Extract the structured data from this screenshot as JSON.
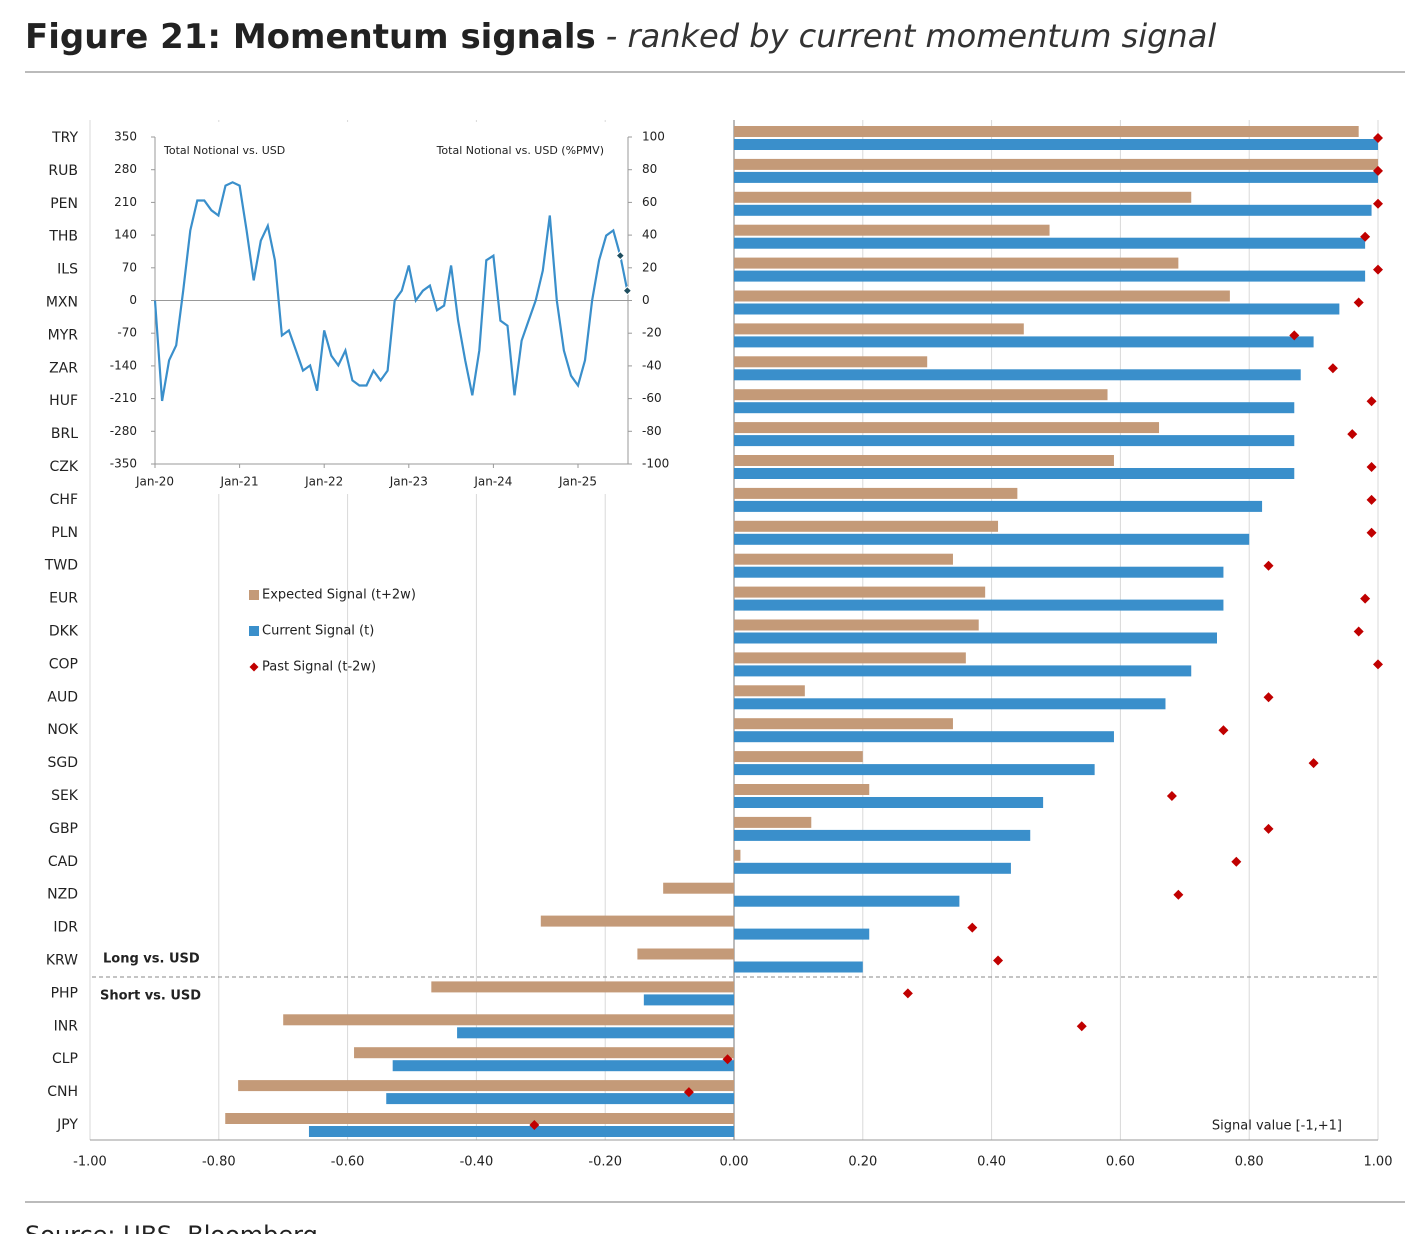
{
  "title": "Figure 21: Momentum signals",
  "subtitle": "- ranked by current momentum signal",
  "source": "Source: UBS, Bloomberg",
  "chart_data": [
    {
      "type": "bar",
      "orientation": "horizontal",
      "categories": [
        "TRY",
        "RUB",
        "PEN",
        "THB",
        "ILS",
        "MXN",
        "MYR",
        "ZAR",
        "HUF",
        "BRL",
        "CZK",
        "CHF",
        "PLN",
        "TWD",
        "EUR",
        "DKK",
        "COP",
        "AUD",
        "NOK",
        "SGD",
        "SEK",
        "GBP",
        "CAD",
        "NZD",
        "IDR",
        "KRW",
        "PHP",
        "INR",
        "CLP",
        "CNH",
        "JPY"
      ],
      "series": [
        {
          "name": "Expected Signal (t+2w)",
          "color": "#c49a78",
          "style": "bar",
          "values": [
            0.97,
            1.0,
            0.71,
            0.49,
            0.69,
            0.77,
            0.45,
            0.3,
            0.58,
            0.66,
            0.59,
            0.44,
            0.41,
            0.34,
            0.39,
            0.38,
            0.36,
            0.11,
            0.34,
            0.2,
            0.21,
            0.12,
            0.01,
            -0.11,
            -0.3,
            -0.15,
            -0.47,
            -0.7,
            -0.59,
            -0.77,
            -0.79
          ]
        },
        {
          "name": "Current Signal (t)",
          "color": "#3a8fcb",
          "style": "bar",
          "values": [
            1.0,
            1.0,
            0.99,
            0.98,
            0.98,
            0.94,
            0.9,
            0.88,
            0.87,
            0.87,
            0.87,
            0.82,
            0.8,
            0.76,
            0.76,
            0.75,
            0.71,
            0.67,
            0.59,
            0.56,
            0.48,
            0.46,
            0.43,
            0.35,
            0.21,
            0.2,
            -0.14,
            -0.43,
            -0.53,
            -0.54,
            -0.66
          ]
        },
        {
          "name": "Past Signal (t-2w)",
          "color": "#c00000",
          "style": "diamond",
          "values": [
            1.0,
            1.0,
            1.0,
            0.98,
            1.0,
            0.97,
            0.87,
            0.93,
            0.99,
            0.96,
            0.99,
            0.99,
            0.99,
            0.83,
            0.98,
            0.97,
            1.0,
            0.83,
            0.76,
            0.9,
            0.68,
            0.83,
            0.78,
            0.69,
            0.37,
            0.41,
            0.27,
            0.54,
            -0.01,
            -0.07,
            -0.31
          ]
        }
      ],
      "xlim": [
        -1,
        1
      ],
      "xticks": [
        {
          "value": -1,
          "label": "-1.00"
        },
        {
          "value": -0.8,
          "label": "-0.80"
        },
        {
          "value": -0.6,
          "label": "-0.60"
        },
        {
          "value": -0.4,
          "label": "-0.40"
        },
        {
          "value": -0.2,
          "label": "-0.20"
        },
        {
          "value": 0,
          "label": "0.00"
        },
        {
          "value": 0.2,
          "label": "0.20"
        },
        {
          "value": 0.4,
          "label": "0.40"
        },
        {
          "value": 0.6,
          "label": "0.60"
        },
        {
          "value": 0.8,
          "label": "0.80"
        },
        {
          "value": 1,
          "label": "1.00"
        }
      ],
      "grid": true,
      "negative_tick_color": "#e00000",
      "annotations": [
        "Long vs. USD",
        "Short vs. USD"
      ],
      "axis_label": "Signal value [-1,+1]"
    },
    {
      "type": "line",
      "legend_left": "Total Notional vs. USD",
      "legend_right": "Total Notional vs. USD (%PMV)",
      "x": [
        "Jan-20",
        "Feb-20",
        "Mar-20",
        "Apr-20",
        "May-20",
        "Jun-20",
        "Jul-20",
        "Aug-20",
        "Sep-20",
        "Oct-20",
        "Nov-20",
        "Dec-20",
        "Jan-21",
        "Feb-21",
        "Mar-21",
        "Apr-21",
        "May-21",
        "Jun-21",
        "Jul-21",
        "Aug-21",
        "Sep-21",
        "Oct-21",
        "Nov-21",
        "Dec-21",
        "Jan-22",
        "Feb-22",
        "Mar-22",
        "Apr-22",
        "May-22",
        "Jun-22",
        "Jul-22",
        "Aug-22",
        "Sep-22",
        "Oct-22",
        "Nov-22",
        "Dec-22",
        "Jan-23",
        "Feb-23",
        "Mar-23",
        "Apr-23",
        "May-23",
        "Jun-23",
        "Jul-23",
        "Aug-23",
        "Sep-23",
        "Oct-23",
        "Nov-23",
        "Dec-23",
        "Jan-24",
        "Feb-24",
        "Mar-24",
        "Apr-24",
        "May-24",
        "Jun-24",
        "Jul-24",
        "Aug-24",
        "Sep-24",
        "Oct-24",
        "Nov-24",
        "Dec-24",
        "Jan-25",
        "Feb-25",
        "Mar-25",
        "Apr-25",
        "May-25",
        "Jun-25",
        "Jul-25",
        "Aug-25"
      ],
      "series": [
        {
          "color": "#3a8fcb",
          "values": [
            0,
            -215,
            -128,
            -96,
            21,
            150,
            214,
            214,
            193,
            182,
            246,
            253,
            246,
            150,
            43,
            128,
            160,
            86,
            -75,
            -64,
            -107,
            -150,
            -139,
            -193,
            -64,
            -118,
            -139,
            -107,
            -171,
            -182,
            -182,
            -150,
            -171,
            -150,
            0,
            21,
            75,
            0,
            21,
            32,
            -21,
            -11,
            75,
            -43,
            -128,
            -203,
            -107,
            86,
            96,
            -43,
            -54,
            -203,
            -86,
            -43,
            0,
            64,
            182,
            0,
            -107,
            -161,
            -182,
            -128,
            0,
            86,
            139,
            150,
            96,
            21
          ]
        }
      ],
      "ylim": [
        -350,
        350
      ],
      "yticks": [
        350,
        280,
        210,
        140,
        70,
        0,
        -70,
        -140,
        -210,
        -280,
        -350
      ],
      "y2lim": [
        -100,
        100
      ],
      "y2ticks": [
        100,
        80,
        60,
        40,
        20,
        0,
        -20,
        -40,
        -60,
        -80,
        -100
      ],
      "xticks": [
        "Jan-20",
        "Jan-21",
        "Jan-22",
        "Jan-23",
        "Jan-24",
        "Jan-25"
      ],
      "negative_tick_color": "#e00000"
    }
  ]
}
